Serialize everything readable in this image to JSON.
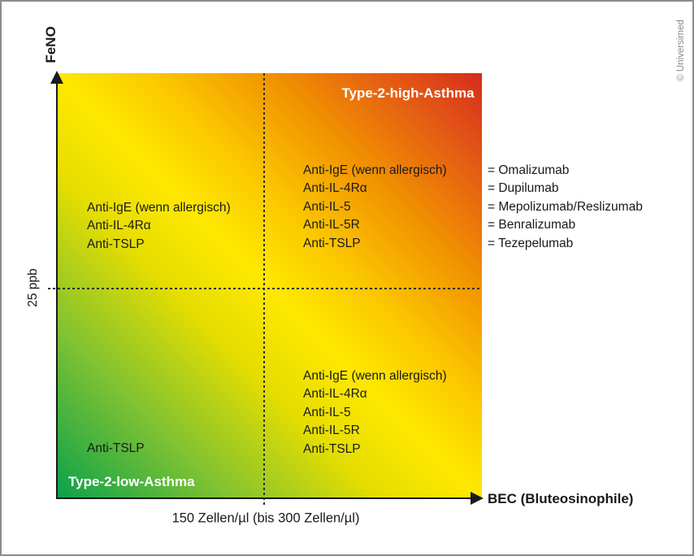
{
  "figure": {
    "credit": "© Universimed",
    "y_axis": {
      "label": "FeNO",
      "threshold_tick": "25 ppb"
    },
    "x_axis": {
      "label": "BEC (Bluteosinophile)",
      "threshold_tick": "150 Zellen/µl (bis 300 Zellen/µl)"
    },
    "quadrants": {
      "top_right_title": "Type-2-high-Asthma",
      "bottom_left_title": "Type-2-low-Asthma",
      "upper_left_items": [
        "Anti-IgE (wenn allergisch)",
        "Anti-IL-4Rα",
        "Anti-TSLP"
      ],
      "upper_right_items": [
        "Anti-IgE (wenn allergisch)",
        "Anti-IL-4Rα",
        "Anti-IL-5",
        "Anti-IL-5R",
        "Anti-TSLP"
      ],
      "lower_right_items": [
        "Anti-IgE (wenn allergisch)",
        "Anti-IL-4Rα",
        "Anti-IL-5",
        "Anti-IL-5R",
        "Anti-TSLP"
      ],
      "lower_left_items": [
        "Anti-TSLP"
      ]
    },
    "legend_items": [
      "= Omalizumab",
      "= Dupilumab",
      "= Mepolizumab/Reslizumab",
      "= Benralizumab",
      "= Tezepelumab"
    ],
    "colors": {
      "green_low": "#0aa14c",
      "yellow_mid": "#ffe800",
      "orange": "#f19200",
      "red_high": "#d52c1b"
    }
  }
}
